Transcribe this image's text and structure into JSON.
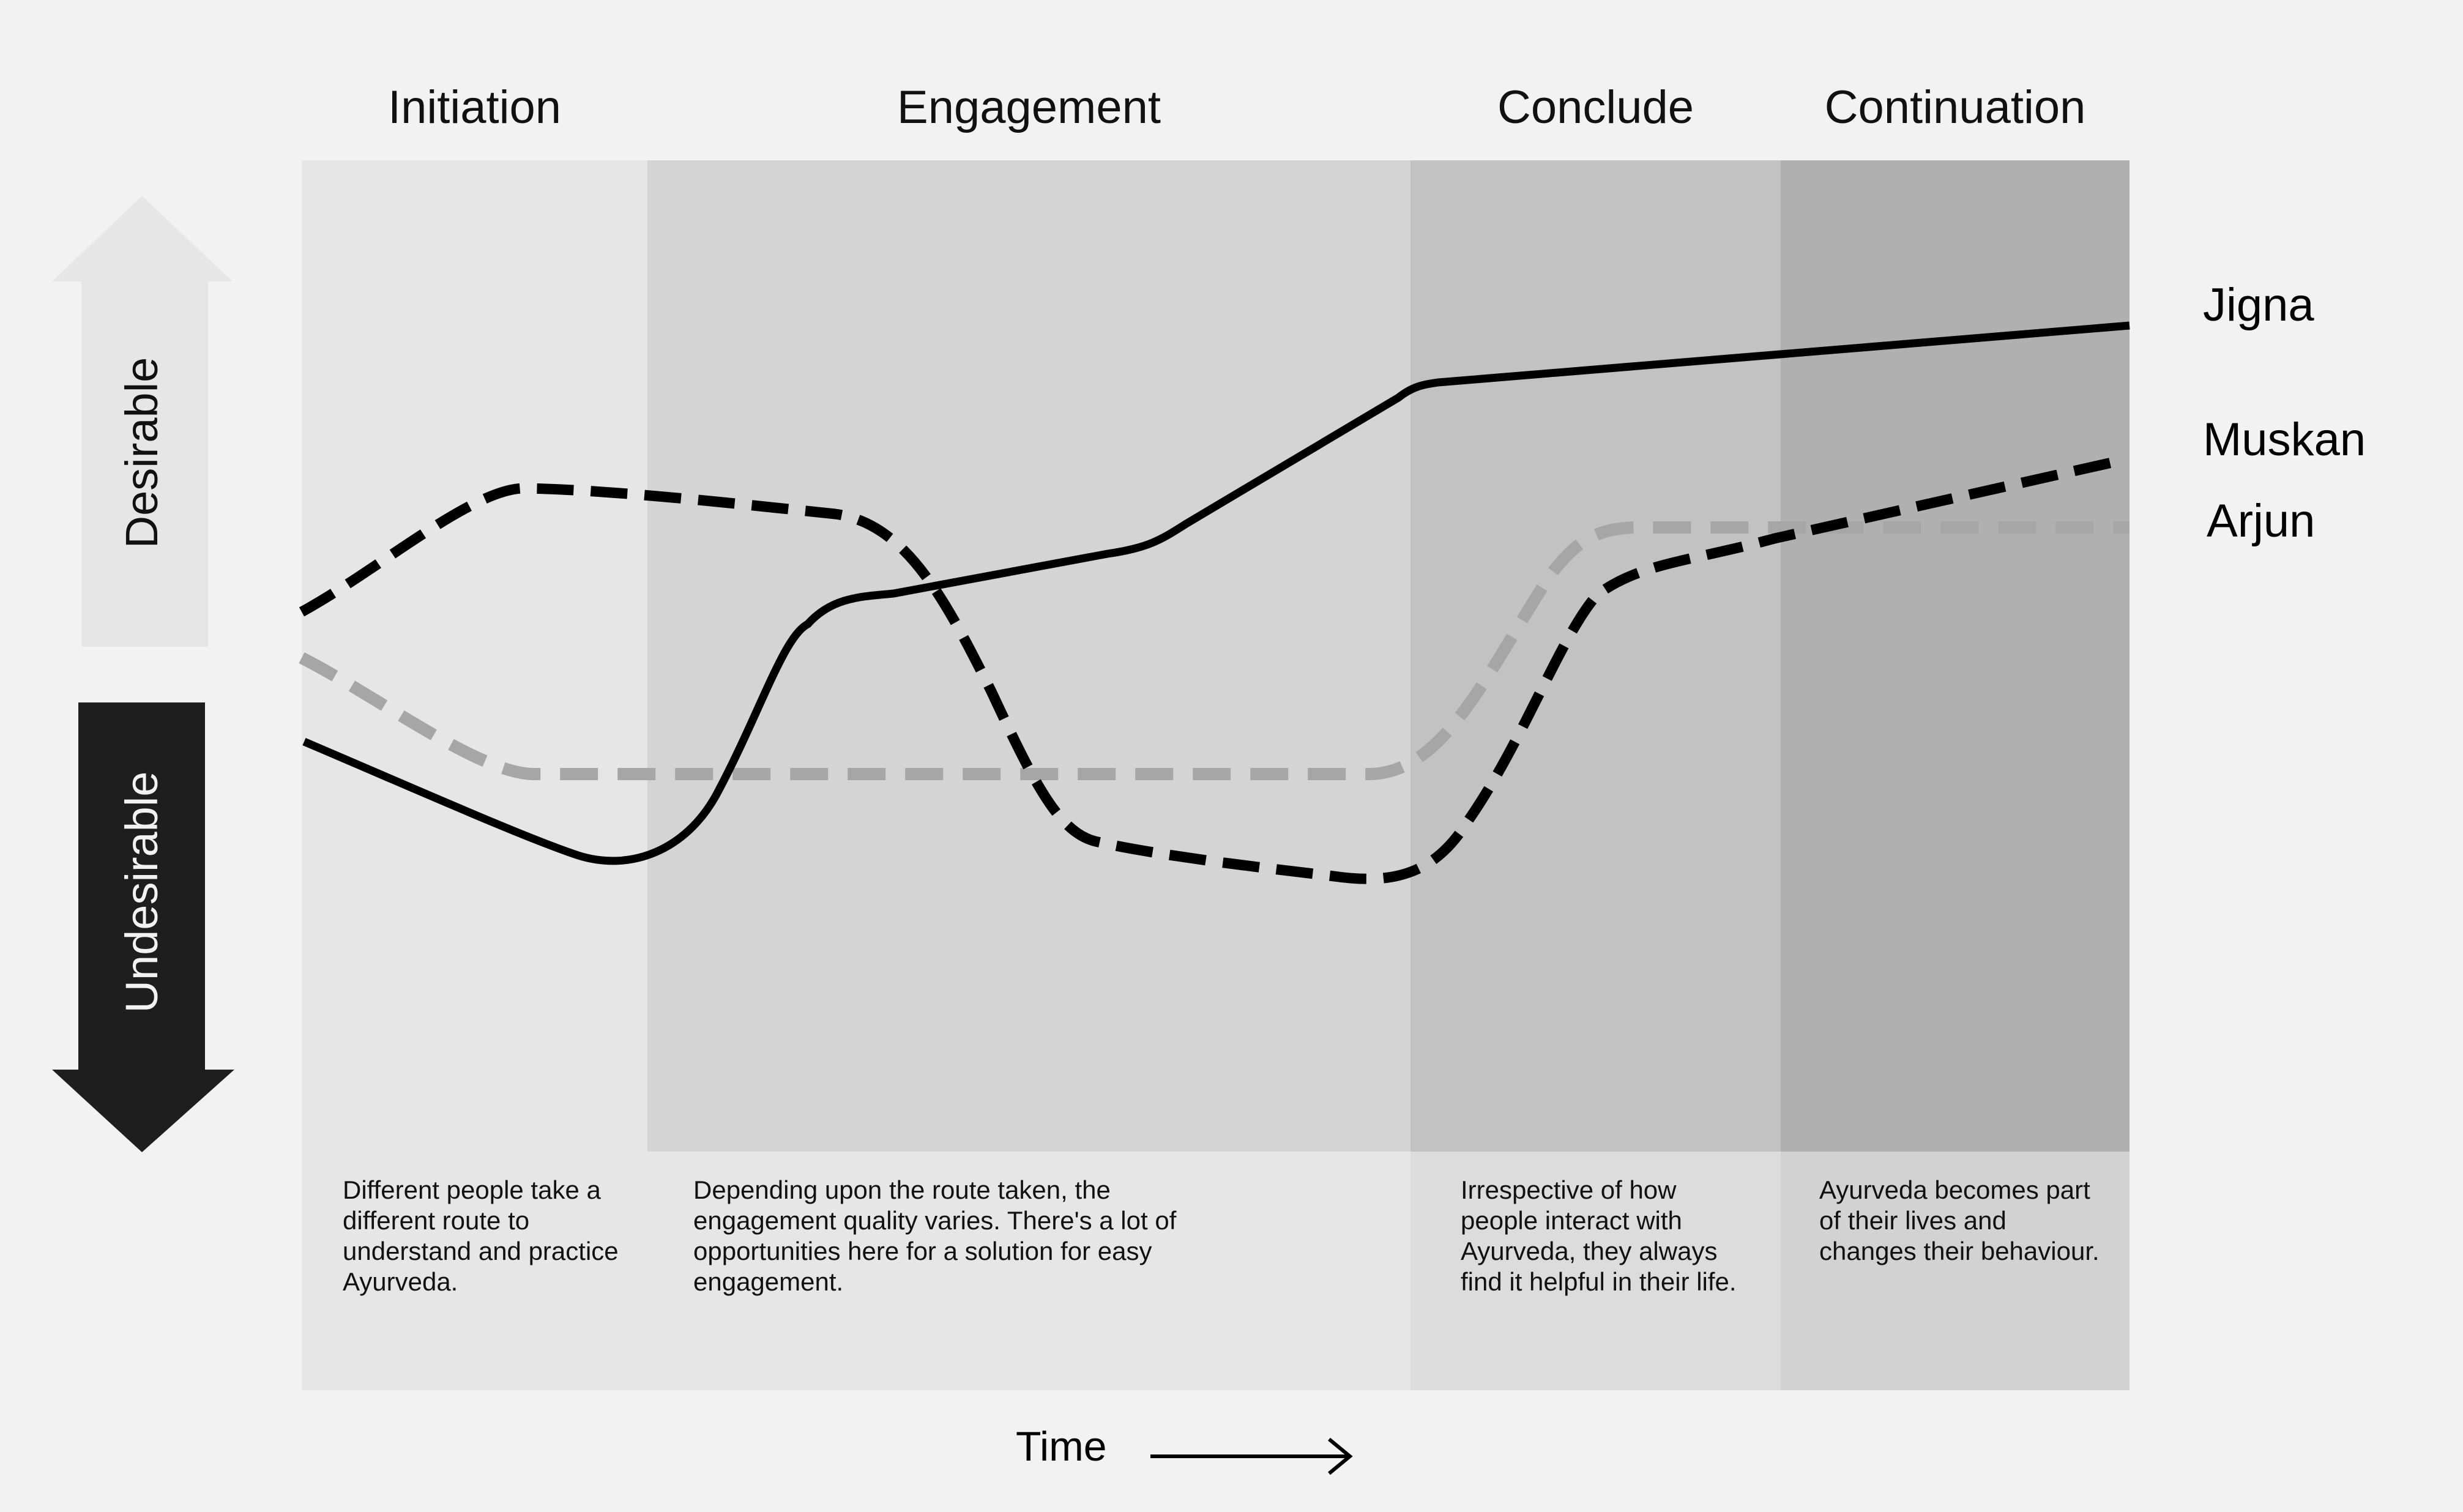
{
  "phases": [
    {
      "name": "Initiation",
      "description": "Different people take a different route to understand and practice Ayurveda."
    },
    {
      "name": "Engagement",
      "description": "Depending upon the route taken, the engagement quality varies. There's a lot of opportunities here for a solution for easy engagement."
    },
    {
      "name": "Conclude",
      "description": "Irrespective of how people interact with Ayurveda, they always find it helpful in their life."
    },
    {
      "name": "Continuation",
      "description": "Ayurveda becomes part of their lives and changes their behaviour."
    }
  ],
  "axis": {
    "desirable": "Desirable",
    "undesirable": "Undesirable",
    "time": "Time"
  },
  "personas": [
    {
      "name": "Jigna",
      "style": "solid",
      "color": "#000000"
    },
    {
      "name": "Muskan",
      "style": "dashed",
      "color": "#000000"
    },
    {
      "name": "Arjun",
      "style": "dashed",
      "color": "#a6a6a6"
    }
  ],
  "colors": {
    "background": "#f2f2f2",
    "phase_fills": [
      "#e6e6e6",
      "#d4d4d4",
      "#c2c2c2",
      "#b0b0b0"
    ],
    "desc_fills": [
      "#e6e6e6",
      "#e6e6e6",
      "#dcdcdc",
      "#d2d2d2"
    ],
    "desirable_arrow": "#e6e6e6",
    "undesirable_arrow": "#1e1e1e"
  }
}
